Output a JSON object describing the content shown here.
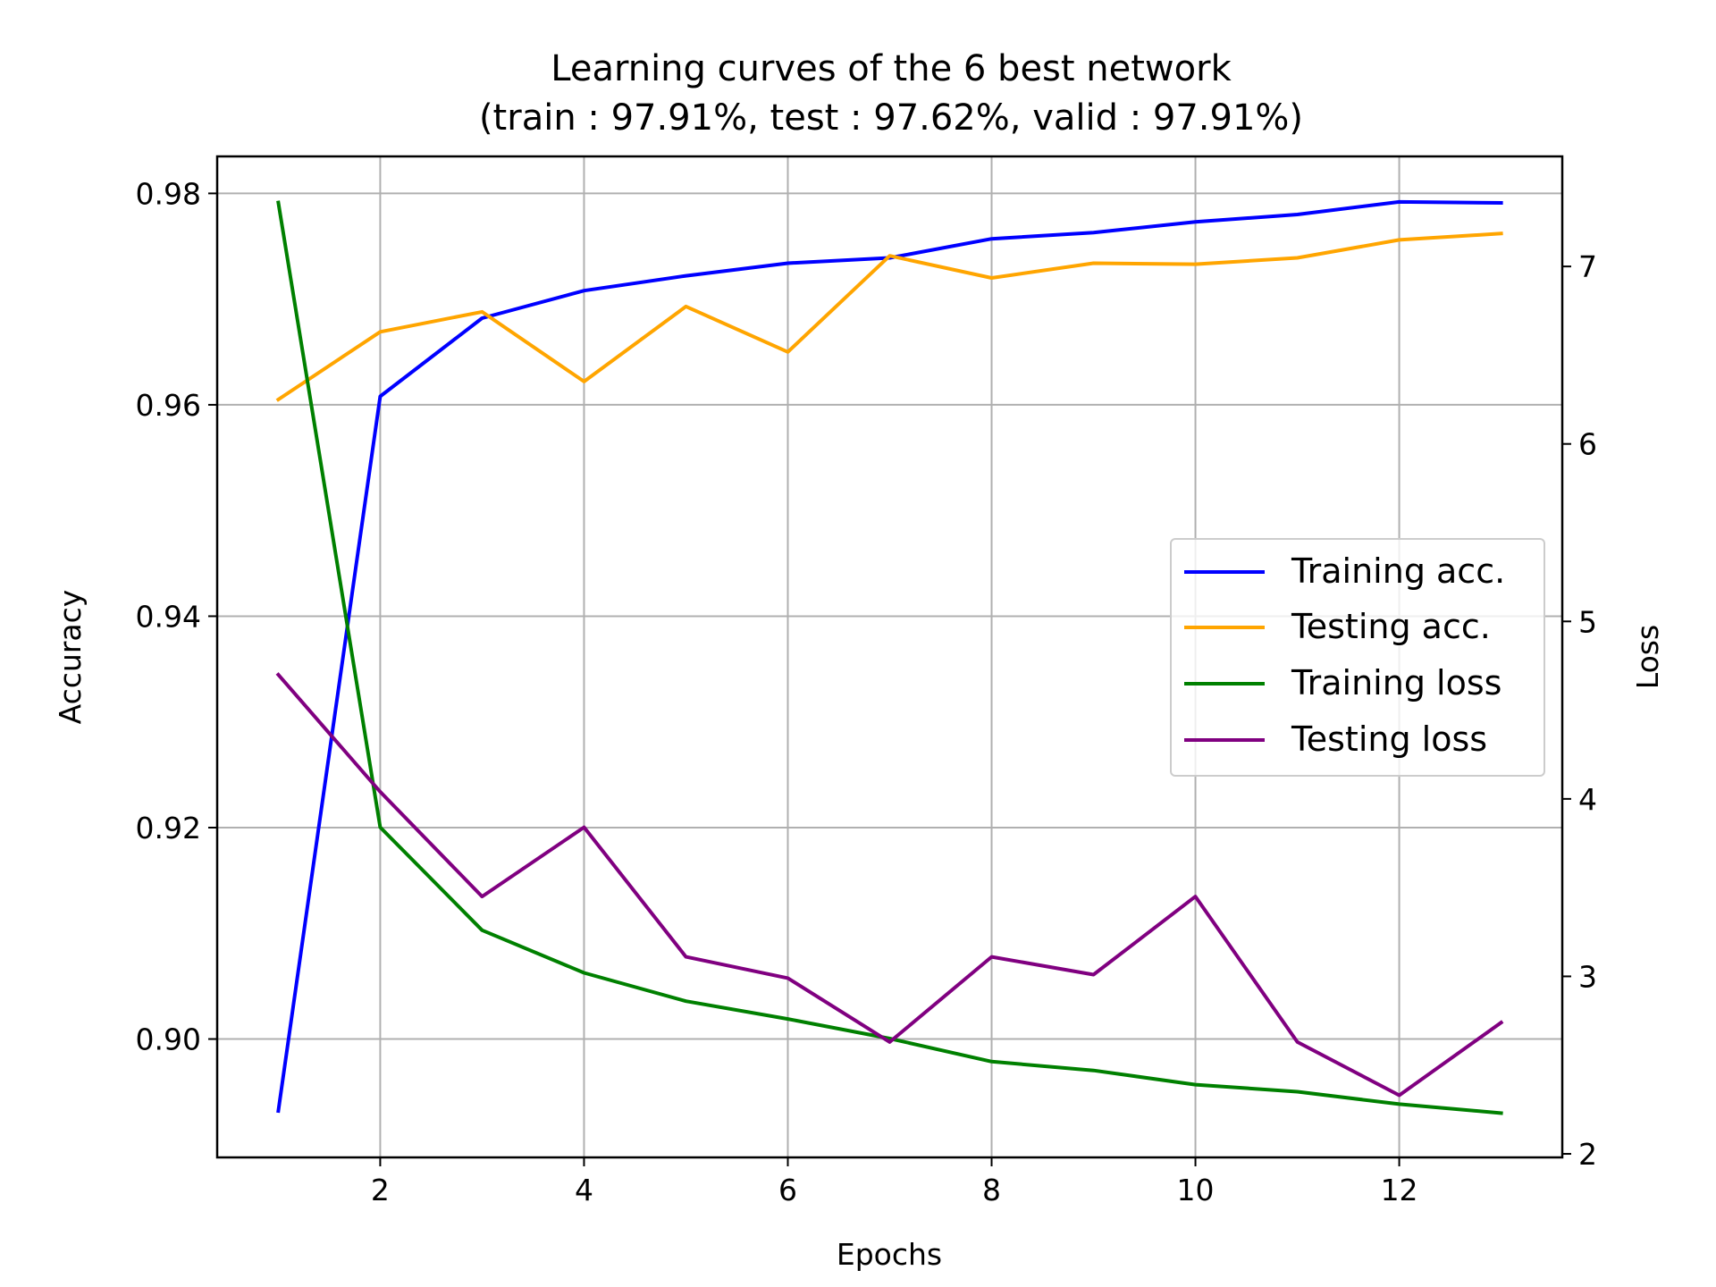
{
  "chart_data": {
    "type": "line",
    "title": "Learning curves of the 6 best network",
    "subtitle": "(train : 97.91%, test : 97.62%, valid : 97.91%)",
    "xlabel": "Epochs",
    "ylabel": "Accuracy",
    "y2label": "Loss",
    "x": [
      1,
      2,
      3,
      4,
      5,
      6,
      7,
      8,
      9,
      10,
      11,
      12,
      13
    ],
    "xlim": [
      0.4,
      13.6
    ],
    "ylim": [
      0.8888,
      0.9835
    ],
    "y2lim": [
      1.98,
      7.62
    ],
    "xticks": [
      2,
      4,
      6,
      8,
      10,
      12
    ],
    "yticks": [
      0.9,
      0.92,
      0.94,
      0.96,
      0.98
    ],
    "ytick_labels": [
      "0.90",
      "0.92",
      "0.94",
      "0.96",
      "0.98"
    ],
    "y2ticks": [
      2,
      3,
      4,
      5,
      6,
      7
    ],
    "grid": true,
    "legend_position": "center-right",
    "series": [
      {
        "name": "Training acc.",
        "axis": "left",
        "color": "#0000ff",
        "values": [
          0.8932,
          0.9608,
          0.9682,
          0.9708,
          0.9722,
          0.9734,
          0.9739,
          0.9757,
          0.9763,
          0.9773,
          0.978,
          0.9792,
          0.9791
        ]
      },
      {
        "name": "Testing acc.",
        "axis": "left",
        "color": "#ffa500",
        "values": [
          0.9605,
          0.9669,
          0.9688,
          0.9622,
          0.9693,
          0.965,
          0.9741,
          0.972,
          0.9734,
          0.9733,
          0.9739,
          0.9756,
          0.9762
        ]
      },
      {
        "name": "Training loss",
        "axis": "right",
        "color": "#008000",
        "values": [
          7.36,
          3.84,
          3.26,
          3.02,
          2.86,
          2.76,
          2.65,
          2.52,
          2.47,
          2.39,
          2.35,
          2.28,
          2.23
        ]
      },
      {
        "name": "Testing loss",
        "axis": "right",
        "color": "#800080",
        "values": [
          4.7,
          4.04,
          3.45,
          3.84,
          3.11,
          2.99,
          2.63,
          3.11,
          3.01,
          3.45,
          2.63,
          2.33,
          2.74
        ]
      }
    ]
  }
}
